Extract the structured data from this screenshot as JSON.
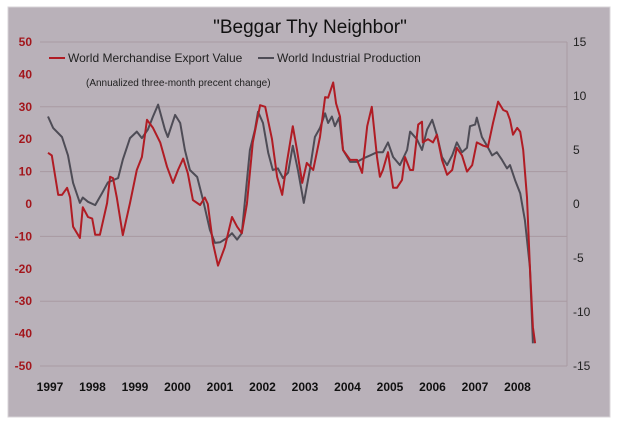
{
  "chart_data": {
    "type": "line",
    "title": "\"Beggar Thy Neighbor\"",
    "subtitle": "(Annualized three-month precent change)",
    "xlabel": "",
    "ylabel_left": "",
    "ylabel_right": "",
    "xlim": [
      1997,
      2009
    ],
    "ylim_left": [
      -50,
      50
    ],
    "ylim_right": [
      -15,
      15
    ],
    "x_ticks": [
      "1997",
      "1998",
      "1999",
      "2000",
      "2001",
      "2002",
      "2003",
      "2004",
      "2005",
      "2006",
      "2007",
      "2008"
    ],
    "y_ticks_left": [
      "50",
      "40",
      "30",
      "20",
      "10",
      "0",
      "-10",
      "-20",
      "-30",
      "-40",
      "-50"
    ],
    "y_ticks_right": [
      "15",
      "10",
      "5",
      "0",
      "-5",
      "-10",
      "-15"
    ],
    "grid": true,
    "legend_position": "top-left",
    "colors": {
      "export": "#b01c24",
      "production": "#4e4c56",
      "background": "#b9b1b9",
      "grid": "#a99aa2"
    },
    "series": [
      {
        "name": "World Merchandise Export Value",
        "axis": "left",
        "x": [
          1997.0,
          1997.09,
          1997.24,
          1997.33,
          1997.45,
          1997.52,
          1997.59,
          1997.75,
          1997.82,
          1997.94,
          1998.04,
          1998.11,
          1998.22,
          1998.39,
          1998.46,
          1998.53,
          1998.62,
          1998.76,
          1998.93,
          1999.09,
          1999.21,
          1999.33,
          1999.47,
          1999.64,
          1999.8,
          1999.94,
          2000.06,
          2000.18,
          2000.29,
          2000.41,
          2000.58,
          2000.69,
          2000.76,
          2000.88,
          2001.0,
          2001.16,
          2001.33,
          2001.45,
          2001.56,
          2001.68,
          2001.82,
          2001.99,
          2002.11,
          2002.27,
          2002.39,
          2002.51,
          2002.62,
          2002.76,
          2002.86,
          2002.98,
          2003.09,
          2003.24,
          2003.4,
          2003.52,
          2003.59,
          2003.71,
          2003.78,
          2003.87,
          2003.94,
          2004.11,
          2004.27,
          2004.39,
          2004.51,
          2004.62,
          2004.74,
          2004.81,
          2004.88,
          2005.0,
          2005.12,
          2005.21,
          2005.33,
          2005.4,
          2005.52,
          2005.59,
          2005.71,
          2005.8,
          2005.82,
          2005.94,
          2006.06,
          2006.15,
          2006.27,
          2006.39,
          2006.51,
          2006.62,
          2006.74,
          2006.86,
          2006.98,
          2007.09,
          2007.24,
          2007.35,
          2007.47,
          2007.59,
          2007.71,
          2007.8,
          2007.87,
          2007.94,
          2008.04,
          2008.11,
          2008.18,
          2008.27,
          2008.34,
          2008.41,
          2008.46
        ],
        "values": [
          15.8,
          15,
          2.8,
          2.8,
          5,
          2,
          -7,
          -10.5,
          -1,
          -4,
          -4.5,
          -9.5,
          -9.5,
          0.3,
          8.4,
          8,
          2,
          -9.6,
          0.3,
          10.5,
          14.5,
          26,
          23.5,
          19,
          11.5,
          6.5,
          10.5,
          14,
          9.5,
          1.2,
          -0.3,
          2,
          0,
          -12,
          -19,
          -13.3,
          -4,
          -7,
          -9,
          0,
          19,
          30.5,
          30,
          20,
          8.4,
          2.8,
          12.7,
          24,
          16.7,
          6.5,
          12.7,
          10.5,
          20.7,
          33,
          32.8,
          37.5,
          31,
          27,
          16.7,
          13.6,
          13.6,
          9.6,
          24,
          30,
          14.5,
          8.4,
          10.5,
          16,
          5,
          5,
          7.4,
          14.5,
          10.5,
          10.5,
          24.5,
          25.4,
          19,
          20,
          19,
          21.4,
          13.6,
          9,
          10.5,
          17.3,
          15,
          10,
          12,
          19,
          18,
          17.6,
          25,
          31.6,
          29,
          28.5,
          26,
          21.4,
          23.5,
          22.3,
          16.7,
          2,
          -19.5,
          -38,
          -43
        ]
      },
      {
        "name": "World Industrial Production",
        "axis": "right",
        "x": [
          1997.0,
          1997.12,
          1997.33,
          1997.47,
          1997.59,
          1997.75,
          1997.82,
          1997.94,
          1998.11,
          1998.27,
          1998.41,
          1998.53,
          1998.65,
          1998.76,
          1998.93,
          1999.09,
          1999.21,
          1999.35,
          1999.47,
          1999.59,
          1999.75,
          1999.82,
          1999.99,
          2000.11,
          2000.22,
          2000.34,
          2000.51,
          2000.65,
          2000.81,
          2000.93,
          2001.05,
          2001.21,
          2001.33,
          2001.45,
          2001.56,
          2001.75,
          2001.87,
          2001.94,
          2002.06,
          2002.18,
          2002.29,
          2002.41,
          2002.53,
          2002.65,
          2002.76,
          2002.88,
          2003.02,
          2003.16,
          2003.28,
          2003.4,
          2003.52,
          2003.59,
          2003.68,
          2003.75,
          2003.85,
          2003.94,
          2004.11,
          2004.27,
          2004.41,
          2004.58,
          2004.74,
          2004.88,
          2005.0,
          2005.12,
          2005.28,
          2005.45,
          2005.52,
          2005.68,
          2005.8,
          2005.92,
          2006.04,
          2006.15,
          2006.27,
          2006.39,
          2006.51,
          2006.62,
          2006.74,
          2006.86,
          2006.93,
          2007.05,
          2007.09,
          2007.21,
          2007.33,
          2007.45,
          2007.56,
          2007.68,
          2007.8,
          2007.87,
          2007.99,
          2008.11,
          2008.22,
          2008.34,
          2008.41
        ],
        "values": [
          8.1,
          7.05,
          6.2,
          4.5,
          1.95,
          0.1,
          0.6,
          0.2,
          -0.1,
          1.0,
          2.0,
          2.2,
          2.4,
          4.1,
          6.1,
          6.7,
          6.1,
          6.9,
          8.1,
          9.2,
          6.9,
          6.2,
          8.25,
          7.5,
          5.0,
          3.15,
          2.5,
          0.35,
          -2.4,
          -3.6,
          -3.55,
          -3.15,
          -2.7,
          -3.3,
          -2.7,
          5.0,
          6.9,
          8.55,
          7.5,
          4.75,
          3.15,
          3.3,
          2.4,
          2.9,
          5.4,
          3.15,
          0.1,
          3.15,
          6.2,
          7.05,
          8.4,
          7.5,
          8.1,
          7.2,
          8.0,
          5.0,
          3.9,
          3.9,
          4.2,
          4.5,
          4.8,
          4.8,
          5.7,
          4.35,
          3.6,
          5.0,
          6.7,
          6.0,
          5.0,
          6.9,
          7.8,
          6.4,
          4.35,
          3.6,
          4.5,
          5.7,
          4.8,
          5.2,
          7.2,
          7.35,
          8.0,
          6.2,
          5.4,
          4.5,
          4.8,
          4.1,
          3.3,
          3.6,
          2.2,
          1.0,
          -1.5,
          -5.85,
          -12.9
        ]
      }
    ]
  }
}
